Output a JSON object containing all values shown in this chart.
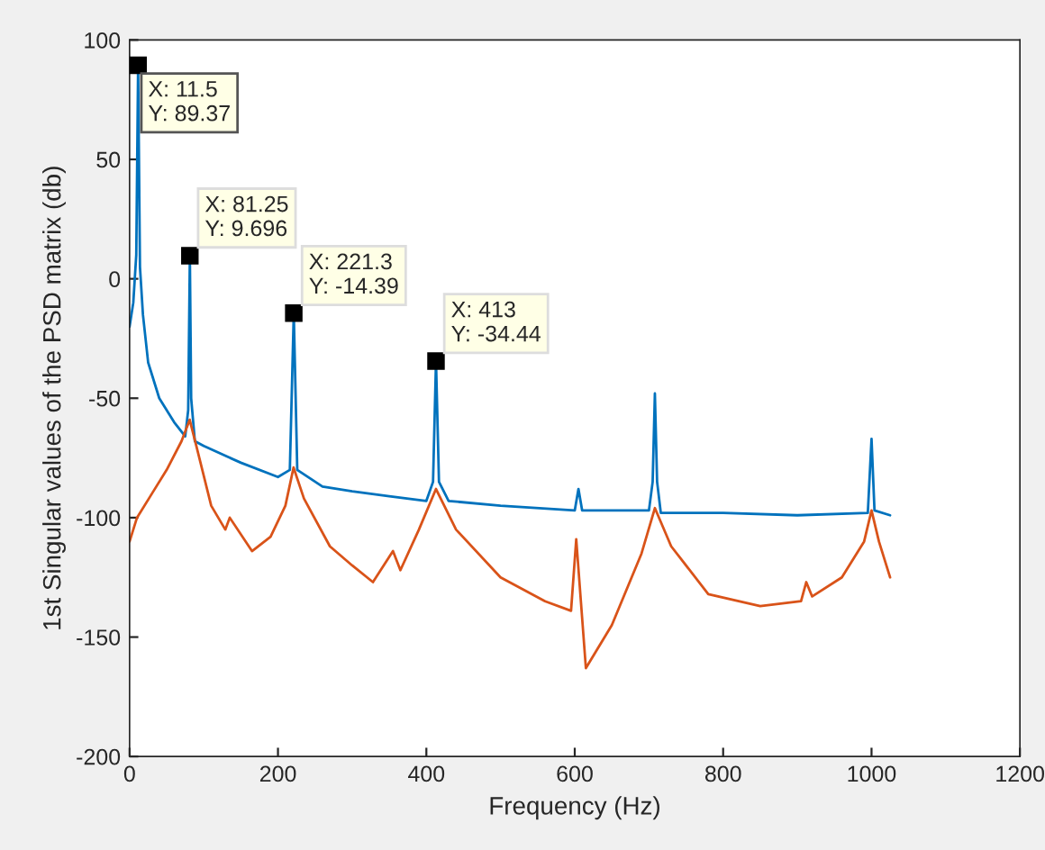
{
  "chart_data": {
    "type": "line",
    "xlabel": "Frequency (Hz)",
    "ylabel": "1st Singular values of the PSD matrix (db)",
    "xlim": [
      0,
      1200
    ],
    "xticks": [
      0,
      200,
      400,
      600,
      800,
      1000,
      1200
    ],
    "ylim": [
      -200,
      100
    ],
    "yticks": [
      -200,
      -150,
      -100,
      -50,
      0,
      50,
      100
    ],
    "grid": false,
    "legend": false,
    "marker": "none",
    "line_style": "solid",
    "series": [
      {
        "color": "#0072bd",
        "x": [
          0,
          5,
          9,
          11.5,
          14,
          18,
          25,
          40,
          60,
          75,
          79,
          81.25,
          83,
          88,
          100,
          150,
          200,
          216,
          221.3,
          226,
          260,
          300,
          350,
          400,
          409,
          413,
          417,
          430,
          500,
          600,
          605,
          610,
          700,
          705,
          708,
          711,
          716,
          800,
          900,
          995,
          1000,
          1004,
          1025
        ],
        "values": [
          -20,
          -10,
          10,
          89.37,
          5,
          -15,
          -35,
          -50,
          -60,
          -66,
          -55,
          9.696,
          -50,
          -68,
          -70,
          -77,
          -83,
          -80,
          -14.39,
          -80,
          -87,
          -89,
          -91,
          -93,
          -85,
          -34.44,
          -85,
          -93,
          -95,
          -97,
          -88,
          -97,
          -97,
          -85,
          -48,
          -85,
          -98,
          -98,
          -99,
          -98,
          -67,
          -97,
          -99
        ]
      },
      {
        "color": "#d95319",
        "x": [
          0,
          10,
          30,
          50,
          70,
          81,
          90,
          110,
          129,
          135,
          165,
          190,
          210,
          221,
          235,
          270,
          300,
          328,
          355,
          365,
          390,
          413,
          440,
          500,
          560,
          595,
          602,
          615,
          650,
          690,
          708,
          730,
          780,
          850,
          905,
          912,
          920,
          960,
          990,
          1000,
          1010,
          1025
        ],
        "values": [
          -110,
          -100,
          -90,
          -80,
          -68,
          -59,
          -70,
          -95,
          -105,
          -100,
          -114,
          -108,
          -95,
          -79,
          -92,
          -112,
          -120,
          -127,
          -114,
          -122,
          -105,
          -88,
          -105,
          -125,
          -135,
          -139,
          -109,
          -163,
          -145,
          -115,
          -96,
          -112,
          -132,
          -137,
          -135,
          -127,
          -133,
          -125,
          -110,
          -97,
          -110,
          -125
        ]
      }
    ],
    "annotations": [
      {
        "text": "X: 11.5\nY: 89.37",
        "x": 11.5,
        "y": 89.37
      },
      {
        "text": "X: 81.25\nY: 9.696",
        "x": 81.25,
        "y": 9.696
      },
      {
        "text": "X: 221.3\nY: -14.39",
        "x": 221.3,
        "y": -14.39
      },
      {
        "text": "X: 413\nY: -34.44",
        "x": 413,
        "y": -34.44
      }
    ]
  }
}
